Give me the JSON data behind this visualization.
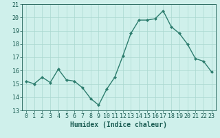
{
  "x": [
    0,
    1,
    2,
    3,
    4,
    5,
    6,
    7,
    8,
    9,
    10,
    11,
    12,
    13,
    14,
    15,
    16,
    17,
    18,
    19,
    20,
    21,
    22,
    23
  ],
  "y": [
    15.2,
    15.0,
    15.5,
    15.1,
    16.1,
    15.3,
    15.2,
    14.7,
    13.9,
    13.4,
    14.6,
    15.5,
    17.1,
    18.8,
    19.8,
    19.8,
    19.9,
    20.5,
    19.3,
    18.8,
    18.0,
    16.9,
    16.7,
    15.9
  ],
  "line_color": "#2d7d6e",
  "marker": "D",
  "marker_size": 2,
  "bg_color": "#cff0eb",
  "grid_color": "#aad8d0",
  "tick_label_color": "#1a5c52",
  "xlabel": "Humidex (Indice chaleur)",
  "xlabel_fontsize": 7,
  "tick_fontsize": 6,
  "ylim": [
    13,
    21
  ],
  "xlim": [
    -0.5,
    23.5
  ],
  "yticks": [
    13,
    14,
    15,
    16,
    17,
    18,
    19,
    20,
    21
  ],
  "xticks": [
    0,
    1,
    2,
    3,
    4,
    5,
    6,
    7,
    8,
    9,
    10,
    11,
    12,
    13,
    14,
    15,
    16,
    17,
    18,
    19,
    20,
    21,
    22,
    23
  ],
  "line_width": 1.0
}
